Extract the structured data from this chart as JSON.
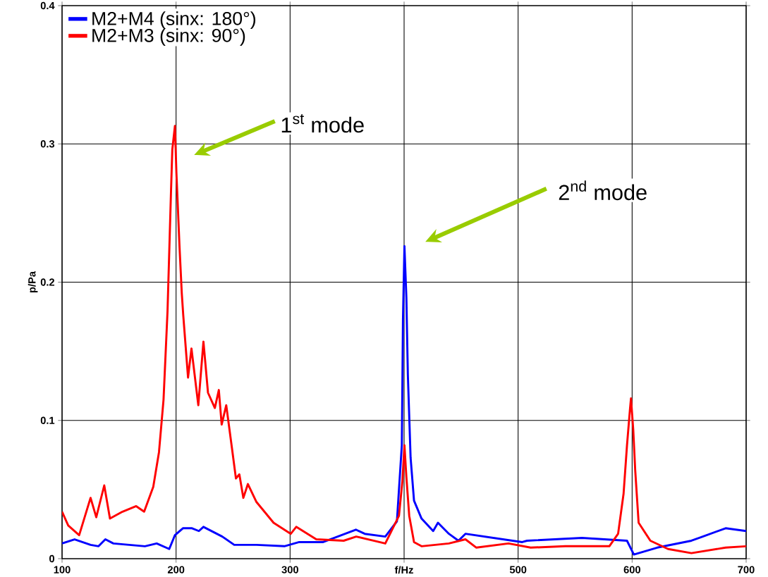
{
  "chart_data": {
    "type": "line",
    "ylabel": "p/Pa",
    "xlim": [
      100,
      700
    ],
    "ylim": [
      0,
      0.4
    ],
    "xticks": [
      100,
      200,
      300,
      {
        "value": 400,
        "label": "f/Hz"
      },
      500,
      600,
      700
    ],
    "yticks": [
      0,
      0.1,
      0.2,
      0.3,
      0.4
    ],
    "grid": true,
    "legend": "top left",
    "marker": "none",
    "line_style": "solid",
    "annotations": [
      "1$^{st}$ mode",
      "2$^{nd}$ mode"
    ],
    "series": [
      {
        "name": "M2+M4 (sinx: 180°)",
        "color": "#0000ff",
        "x": [
          100,
          111,
          125,
          132,
          138,
          145,
          172.7,
          183,
          194,
          199,
          206,
          214,
          220,
          224,
          240.5,
          251,
          270.5,
          295,
          308,
          329,
          357.7,
          365.5,
          383.5,
          393.7,
          398,
          399,
          400.3,
          402,
          403.3,
          405.7,
          408.7,
          415.3,
          425.5,
          429.7,
          439.3,
          447.7,
          453.8,
          503.6,
          507.8,
          556,
          595.5,
          601.5,
          622,
          652,
          682,
          700
        ],
        "values": [
          0.011,
          0.014,
          0.01,
          0.009,
          0.014,
          0.011,
          0.009,
          0.011,
          0.007,
          0.017,
          0.022,
          0.022,
          0.02,
          0.023,
          0.016,
          0.01,
          0.01,
          0.009,
          0.012,
          0.012,
          0.021,
          0.018,
          0.016,
          0.027,
          0.082,
          0.173,
          0.226,
          0.189,
          0.133,
          0.073,
          0.042,
          0.029,
          0.02,
          0.026,
          0.018,
          0.013,
          0.018,
          0.012,
          0.013,
          0.015,
          0.013,
          0.003,
          0.008,
          0.013,
          0.022,
          0.02
        ]
      },
      {
        "name": "M2+M3 (sinx: 90°)",
        "color": "#ff0000",
        "x": [
          100,
          105.4,
          115,
          125,
          130,
          137,
          142,
          153,
          165,
          172,
          180,
          185,
          189,
          192.5,
          195.5,
          196.7,
          199,
          200.3,
          203,
          205,
          206.3,
          210.5,
          213.5,
          219.5,
          224,
          228,
          234,
          237.5,
          240,
          244,
          249,
          252.5,
          255.5,
          259,
          263,
          270.5,
          285.5,
          300.6,
          305.4,
          323,
          347,
          358,
          383.5,
          395.5,
          398.5,
          400.3,
          402,
          404.5,
          408.7,
          415.3,
          439.3,
          453.8,
          463.4,
          491.6,
          511,
          541.5,
          580,
          587.7,
          592.5,
          595.5,
          598,
          599,
          601,
          602.7,
          605.7,
          616,
          631.5,
          652,
          682,
          700
        ],
        "values": [
          0.034,
          0.024,
          0.017,
          0.044,
          0.03,
          0.053,
          0.029,
          0.034,
          0.038,
          0.034,
          0.052,
          0.077,
          0.115,
          0.179,
          0.264,
          0.296,
          0.313,
          0.279,
          0.226,
          0.192,
          0.176,
          0.131,
          0.152,
          0.111,
          0.157,
          0.12,
          0.109,
          0.122,
          0.097,
          0.111,
          0.08,
          0.058,
          0.061,
          0.044,
          0.054,
          0.041,
          0.026,
          0.018,
          0.023,
          0.014,
          0.013,
          0.016,
          0.011,
          0.031,
          0.056,
          0.082,
          0.059,
          0.031,
          0.012,
          0.009,
          0.011,
          0.014,
          0.008,
          0.011,
          0.008,
          0.009,
          0.009,
          0.018,
          0.047,
          0.082,
          0.107,
          0.116,
          0.093,
          0.064,
          0.026,
          0.013,
          0.007,
          0.004,
          0.008,
          0.009
        ]
      }
    ]
  }
}
